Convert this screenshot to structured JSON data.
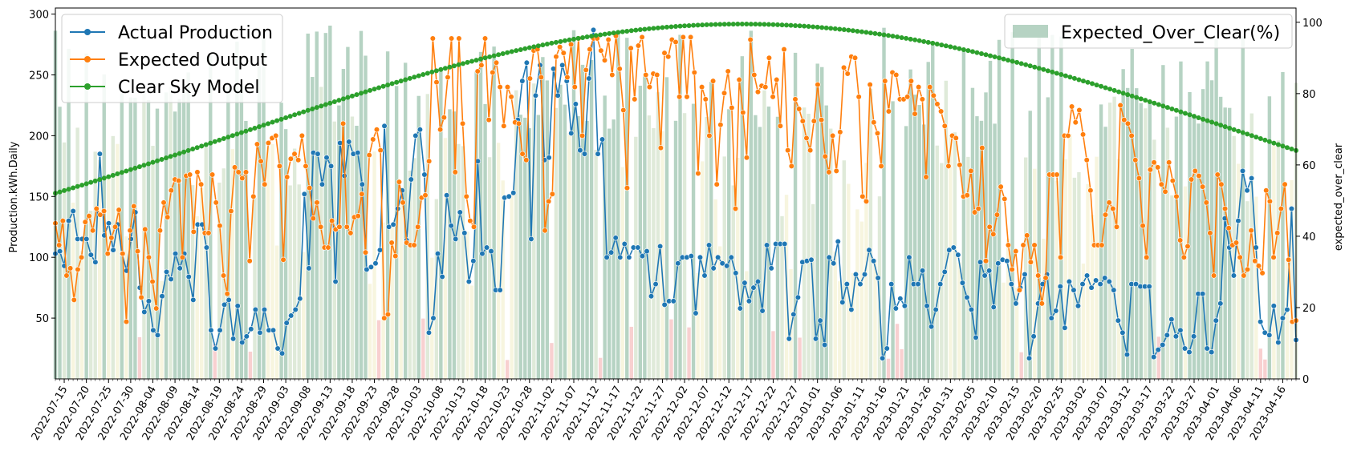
{
  "chart_data": {
    "type": "line",
    "x_start": "2022-07-13",
    "x_end": "2023-04-19",
    "x_tick_labels": [
      "2022-07-15",
      "2022-07-20",
      "2022-07-25",
      "2022-07-30",
      "2022-08-04",
      "2022-08-09",
      "2022-08-14",
      "2022-08-19",
      "2022-08-24",
      "2022-08-29",
      "2022-09-03",
      "2022-09-08",
      "2022-09-13",
      "2022-09-18",
      "2022-09-23",
      "2022-09-28",
      "2022-10-03",
      "2022-10-08",
      "2022-10-13",
      "2022-10-18",
      "2022-10-23",
      "2022-10-28",
      "2022-11-02",
      "2022-11-07",
      "2022-11-12",
      "2022-11-17",
      "2022-11-22",
      "2022-11-27",
      "2022-12-02",
      "2022-12-07",
      "2022-12-12",
      "2022-12-17",
      "2022-12-22",
      "2022-12-27",
      "2023-01-01",
      "2023-01-06",
      "2023-01-11",
      "2023-01-16",
      "2023-01-21",
      "2023-01-26",
      "2023-01-31",
      "2023-02-05",
      "2023-02-10",
      "2023-02-15",
      "2023-02-20",
      "2023-02-25",
      "2023-03-02",
      "2023-03-07",
      "2023-03-12",
      "2023-03-17",
      "2023-03-22",
      "2023-03-27",
      "2023-04-01",
      "2023-04-06",
      "2023-04-11",
      "2023-04-16"
    ],
    "ylabel": "Production.kWh.Daily",
    "ylabel_right": "expected_over_clear",
    "ylim": [
      0,
      305
    ],
    "ylim_right": [
      0,
      104
    ],
    "y_ticks": [
      "50",
      "100",
      "150",
      "200",
      "250",
      "300"
    ],
    "y_ticks_right": [
      "0",
      "20",
      "40",
      "60",
      "80",
      "100"
    ],
    "grid": false,
    "legend_left": "top-left",
    "legend_right": "top-right",
    "series": [
      {
        "name": "Actual Production",
        "color": "#1f77b4",
        "axis": "left",
        "values": [
          103,
          105,
          93,
          130,
          138,
          115,
          115,
          115,
          102,
          96,
          185,
          118,
          128,
          106,
          127,
          103,
          89,
          115,
          137,
          75,
          55,
          64,
          40,
          36,
          68,
          88,
          82,
          103,
          91,
          103,
          84,
          65,
          127,
          127,
          108,
          40,
          25,
          40,
          61,
          65,
          33,
          60,
          30,
          35,
          41,
          57,
          38,
          57,
          40,
          40,
          25,
          21,
          46,
          52,
          57,
          66,
          152,
          91,
          186,
          185,
          160,
          182,
          175,
          80,
          194,
          167,
          195,
          185,
          186,
          160,
          90,
          92,
          95,
          106,
          208,
          125,
          127,
          140,
          155,
          114,
          164,
          200,
          205,
          168,
          38,
          50,
          103,
          84,
          151,
          126,
          115,
          137,
          120,
          80,
          97,
          179,
          103,
          108,
          105,
          73,
          73,
          149,
          150,
          153,
          213,
          245,
          260,
          115,
          233,
          258,
          180,
          182,
          255,
          233,
          258,
          245,
          202,
          226,
          188,
          185,
          247,
          287,
          185,
          197,
          100,
          104,
          116,
          100,
          111,
          100,
          108,
          108,
          101,
          105,
          68,
          78,
          109,
          61,
          64,
          64,
          95,
          100,
          100,
          101,
          54,
          100,
          85,
          110,
          91,
          100,
          95,
          93,
          100,
          87,
          58,
          79,
          64,
          75,
          80,
          56,
          110,
          91,
          111,
          111,
          111,
          33,
          53,
          67,
          96,
          97,
          98,
          33,
          48,
          28,
          100,
          95,
          113,
          63,
          78,
          57,
          86,
          78,
          86,
          106,
          97,
          83,
          17,
          25,
          78,
          58,
          66,
          60,
          100,
          78,
          78,
          89,
          60,
          43,
          57,
          78,
          88,
          106,
          108,
          102,
          79,
          67,
          57,
          34,
          96,
          85,
          89,
          59,
          95,
          98,
          97,
          78,
          62,
          75,
          86,
          17,
          35,
          62,
          78,
          86,
          50,
          56,
          76,
          42,
          80,
          73,
          60,
          78,
          85,
          75,
          81,
          78,
          83,
          80,
          73,
          48,
          38,
          20,
          78,
          78,
          76,
          76,
          76,
          18,
          24,
          28,
          36,
          49,
          35,
          40,
          25,
          22,
          35,
          70,
          70,
          25,
          22,
          48,
          62,
          132,
          108,
          85,
          130,
          171,
          155,
          165,
          108,
          47,
          38,
          36,
          60,
          30,
          50,
          57,
          140,
          32
        ]
      },
      {
        "name": "Expected Output",
        "color": "#ff7f0e",
        "axis": "left",
        "values": [
          128,
          110,
          130,
          85,
          91,
          65,
          90,
          100,
          129,
          134,
          122,
          140,
          135,
          138,
          103,
          116,
          125,
          139,
          103,
          47,
          122,
          142,
          105,
          67,
          123,
          100,
          80,
          58,
          122,
          145,
          133,
          155,
          164,
          163,
          100,
          167,
          168,
          121,
          170,
          160,
          120,
          120,
          168,
          145,
          126,
          85,
          70,
          138,
          174,
          170,
          165,
          170,
          97,
          150,
          193,
          179,
          160,
          194,
          198,
          200,
          175,
          98,
          166,
          181,
          185,
          180,
          200,
          175,
          157,
          132,
          145,
          125,
          108,
          108,
          130,
          123,
          125,
          210,
          125,
          120,
          133,
          134,
          152,
          104,
          184,
          197,
          205,
          188,
          50,
          53,
          112,
          101,
          162,
          145,
          112,
          110,
          110,
          125,
          149,
          151,
          179,
          280,
          244,
          205,
          215,
          248,
          280,
          170,
          280,
          210,
          150,
          130,
          125,
          253,
          258,
          280,
          213,
          252,
          260,
          240,
          208,
          240,
          232,
          211,
          210,
          185,
          180,
          247,
          270,
          271,
          248,
          122,
          146,
          152,
          265,
          273,
          268,
          248,
          275,
          240,
          280,
          200,
          254,
          271,
          280,
          280,
          270,
          262,
          279,
          250,
          282,
          255,
          221,
          157,
          272,
          230,
          274,
          281,
          250,
          240,
          251,
          250,
          190,
          268,
          265,
          279,
          277,
          232,
          281,
          232,
          281,
          252,
          169,
          240,
          230,
          200,
          245,
          160,
          209,
          235,
          253,
          223,
          140,
          246,
          219,
          182,
          279,
          250,
          236,
          241,
          240,
          264,
          232,
          246,
          208,
          271,
          188,
          175,
          230,
          222,
          212,
          198,
          188,
          212,
          242,
          213,
          183,
          170,
          200,
          171,
          203,
          256,
          251,
          265,
          264,
          232,
          150,
          146,
          242,
          211,
          202,
          175,
          245,
          220,
          252,
          250,
          230,
          230,
          232,
          245,
          218,
          240,
          230,
          166,
          240,
          233,
          226,
          220,
          208,
          175,
          200,
          198,
          176,
          150,
          151,
          171,
          137,
          140,
          190,
          97,
          125,
          119,
          135,
          158,
          148,
          110,
          90,
          105,
          73,
          110,
          118,
          96,
          110,
          85,
          62,
          83,
          168,
          168,
          168,
          100,
          200,
          200,
          224,
          211,
          221,
          201,
          180,
          155,
          110,
          110,
          110,
          135,
          145,
          140,
          125,
          225,
          213,
          210,
          200,
          180,
          165,
          126,
          100,
          172,
          178,
          174,
          160,
          154,
          178,
          163,
          150,
          114,
          100,
          109,
          164,
          171,
          167,
          158,
          145,
          120,
          85,
          168,
          160,
          140,
          124,
          110,
          112,
          100,
          85,
          90,
          122,
          97,
          93,
          87,
          155,
          146,
          100,
          120,
          140,
          160,
          98,
          47,
          48
        ]
      },
      {
        "name": "Clear Sky Model",
        "color": "#2ca02c",
        "axis": "right",
        "peak": 99.5,
        "start": 45.8,
        "end": 60.5
      }
    ],
    "bar_series": {
      "name": "Expected_Over_Clear(%)",
      "color": "#86b59b",
      "axis": "right",
      "range": [
        0,
        100
      ]
    }
  }
}
